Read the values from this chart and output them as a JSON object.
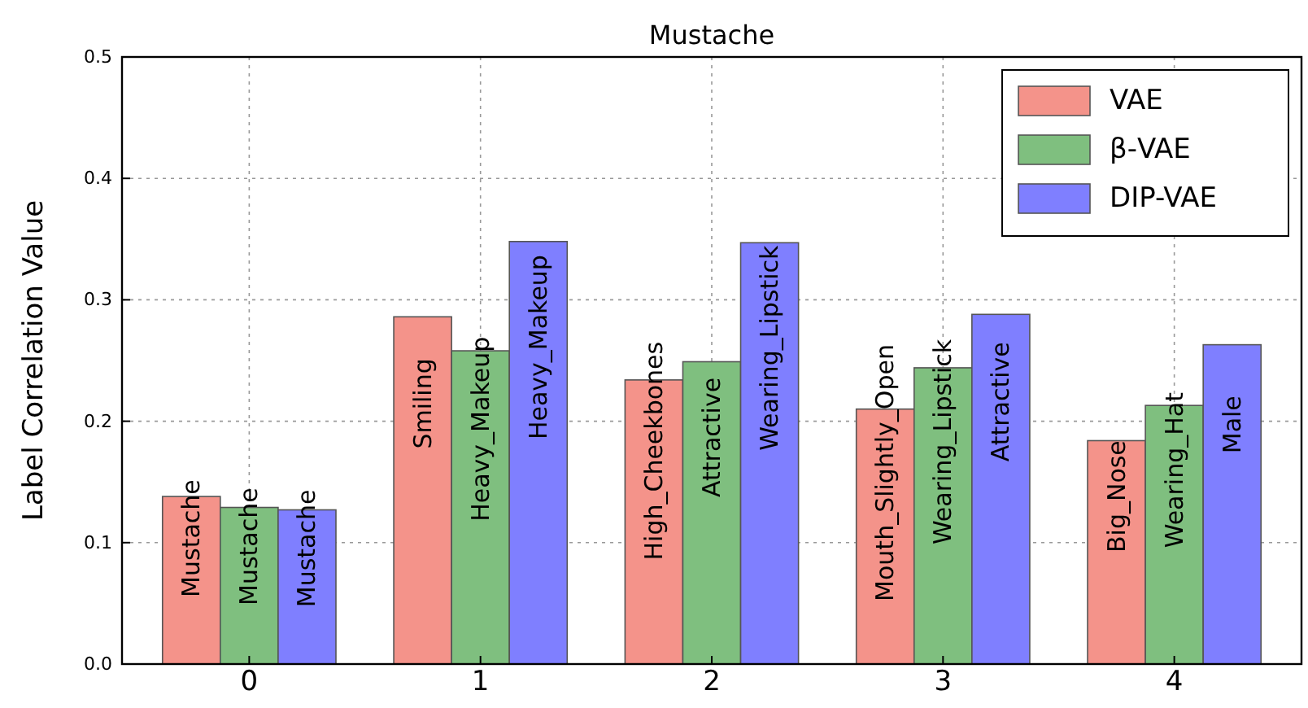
{
  "chart_data": {
    "type": "bar",
    "title": "Mustache",
    "ylabel": "Label Correlation Value",
    "categories": [
      "0",
      "1",
      "2",
      "3",
      "4"
    ],
    "series": [
      {
        "name": "VAE",
        "color": "#f4938a",
        "values": [
          0.138,
          0.286,
          0.234,
          0.21,
          0.184
        ],
        "value_labels": [
          "Mustache",
          "Smiling",
          "High_Cheekbones",
          "Mouth_Slightly_Open",
          "Big_Nose"
        ]
      },
      {
        "name": "β-VAE",
        "color": "#7fbf7f",
        "values": [
          0.129,
          0.258,
          0.249,
          0.244,
          0.213
        ],
        "value_labels": [
          "Mustache",
          "Heavy_Makeup",
          "Attractive",
          "Wearing_Lipstick",
          "Wearing_Hat"
        ]
      },
      {
        "name": "DIP-VAE",
        "color": "#7f7fff",
        "values": [
          0.127,
          0.348,
          0.347,
          0.288,
          0.263
        ],
        "value_labels": [
          "Mustache",
          "Heavy_Makeup",
          "Wearing_Lipstick",
          "Attractive",
          "Male"
        ]
      }
    ],
    "ylim": [
      0,
      0.5
    ],
    "yticks": [
      {
        "value": 0,
        "label": "0.0"
      },
      {
        "value": 0.1,
        "label": "0.1"
      },
      {
        "value": 0.2,
        "label": "0.2"
      },
      {
        "value": 0.3,
        "label": "0.3"
      },
      {
        "value": 0.4,
        "label": "0.4"
      },
      {
        "value": 0.5,
        "label": "0.5"
      }
    ],
    "grid": true,
    "legend": "top right"
  }
}
